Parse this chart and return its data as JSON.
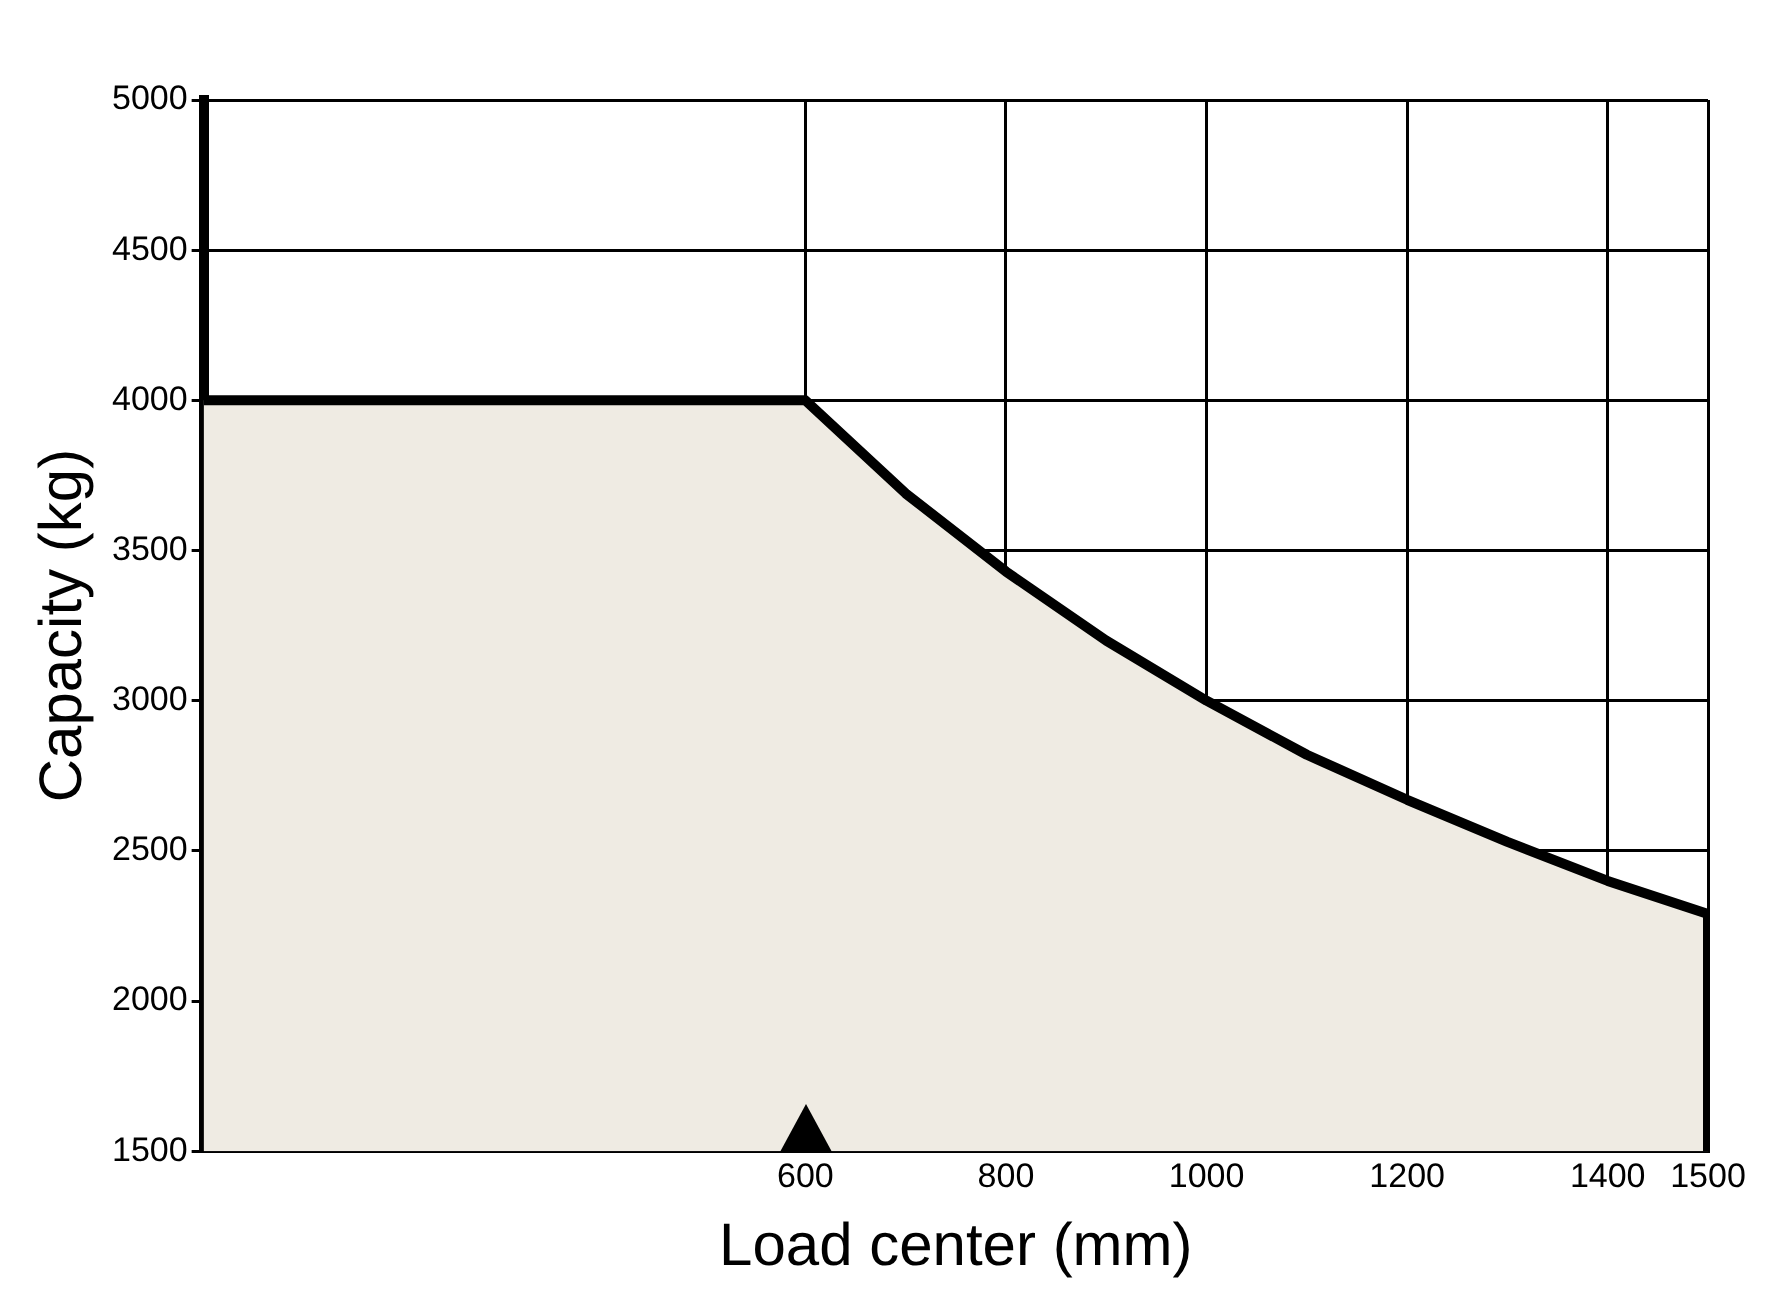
{
  "chart_data": {
    "type": "area",
    "xlabel": "Load center (mm)",
    "ylabel": "Capacity (kg)",
    "x": [
      0,
      600,
      700,
      800,
      900,
      1000,
      1100,
      1200,
      1300,
      1400,
      1500,
      1500
    ],
    "series": [
      {
        "color": "#efebe3",
        "values": [
          4000,
          4000,
          3690,
          3430,
          3200,
          3000,
          2820,
          2670,
          2530,
          2400,
          2290,
          1500
        ]
      }
    ],
    "xlim": [
      0,
      1500
    ],
    "xticks": [
      600,
      800,
      1000,
      1200,
      1400,
      1500
    ],
    "ylim": [
      1500,
      5000
    ],
    "yticks": [
      1500,
      2000,
      2500,
      3000,
      3500,
      4000,
      4500,
      5000
    ],
    "grid": true,
    "legend": false,
    "marker": "none",
    "line_style": "solid"
  }
}
